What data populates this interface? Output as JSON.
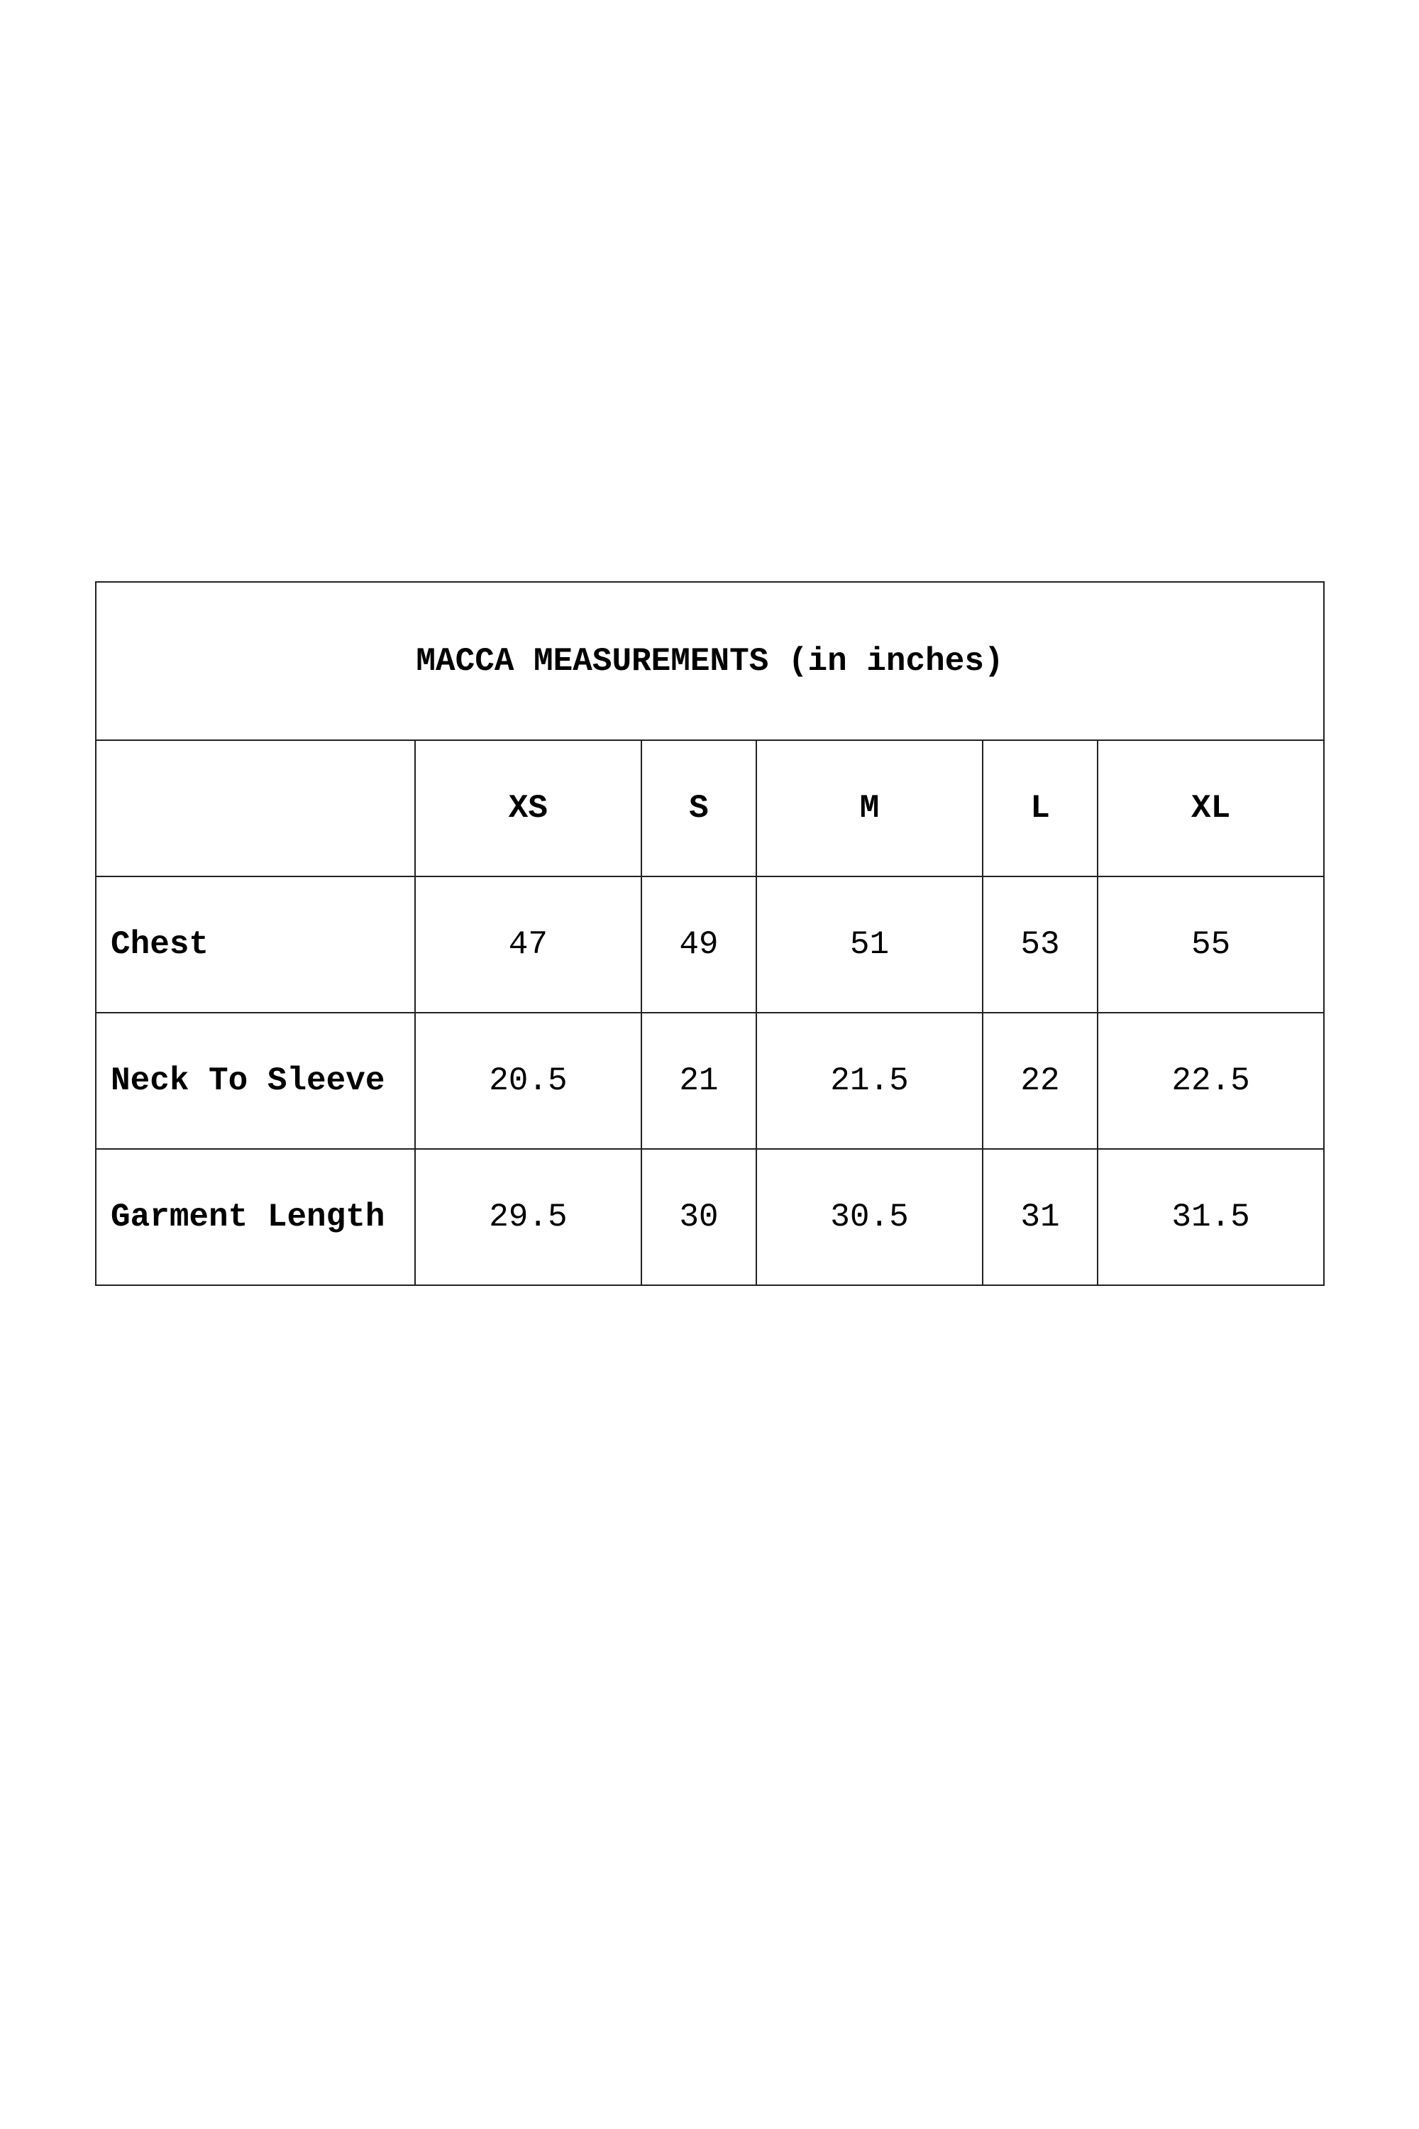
{
  "table": {
    "title": "MACCA MEASUREMENTS (in inches)",
    "corner": "",
    "sizes": [
      "XS",
      "S",
      "M",
      "L",
      "XL"
    ],
    "rows": [
      {
        "label": "Chest",
        "values": [
          "47",
          "49",
          "51",
          "53",
          "55"
        ]
      },
      {
        "label": "Neck To Sleeve",
        "values": [
          "20.5",
          "21",
          "21.5",
          "22",
          "22.5"
        ]
      },
      {
        "label": "Garment Length",
        "values": [
          "29.5",
          "30",
          "30.5",
          "31",
          "31.5"
        ]
      }
    ]
  }
}
